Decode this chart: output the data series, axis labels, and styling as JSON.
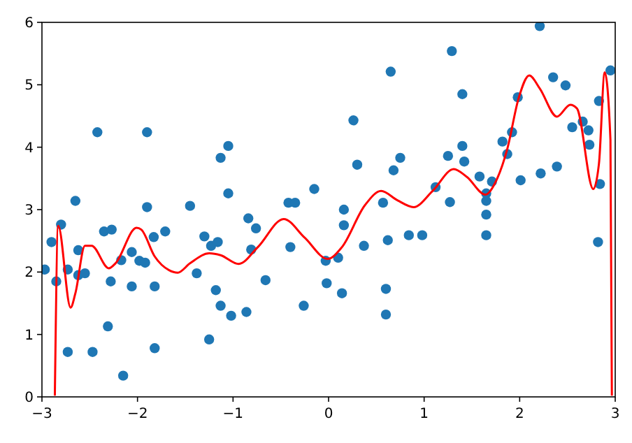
{
  "chart_data": {
    "type": "scatter",
    "xlim": [
      -3,
      3
    ],
    "ylim": [
      0,
      6
    ],
    "xticks": [
      {
        "value": -3,
        "label": "−3"
      },
      {
        "value": -2,
        "label": "−2"
      },
      {
        "value": -1,
        "label": "−1"
      },
      0,
      1,
      2,
      3
    ],
    "yticks": [
      0,
      1,
      2,
      3,
      4,
      5,
      6
    ],
    "series": [
      {
        "color": "#1f77b4",
        "marker": "circle",
        "x": [
          -2.97,
          -2.9,
          -2.85,
          -2.8,
          -2.73,
          -2.73,
          -2.65,
          -2.62,
          -2.62,
          -2.55,
          -2.47,
          -2.42,
          -2.35,
          -2.31,
          -2.27,
          -2.28,
          -2.17,
          -2.15,
          -2.06,
          -2.06,
          -1.98,
          -1.92,
          -1.9,
          -1.9,
          -1.83,
          -1.82,
          -1.82,
          -1.71,
          -1.45,
          -1.38,
          -1.3,
          -1.25,
          -1.23,
          -1.16,
          -1.18,
          -1.13,
          -1.13,
          -1.05,
          -1.05,
          -1.02,
          -0.84,
          -0.76,
          -0.81,
          -0.86,
          -0.66,
          -0.42,
          -0.35,
          -0.4,
          -0.26,
          -0.15,
          -0.03,
          -0.02,
          0.1,
          0.14,
          0.16,
          0.16,
          0.26,
          0.3,
          0.37,
          0.6,
          0.6,
          0.57,
          0.62,
          0.68,
          0.75,
          0.65,
          0.84,
          0.98,
          1.12,
          1.25,
          1.27,
          1.29,
          1.4,
          1.4,
          1.42,
          1.58,
          1.65,
          1.65,
          1.65,
          1.65,
          1.71,
          1.82,
          1.87,
          1.92,
          1.98,
          2.01,
          2.21,
          2.22,
          2.35,
          2.39,
          2.48,
          2.55,
          2.66,
          2.72,
          2.73,
          2.83,
          2.84,
          2.82,
          2.95
        ],
        "values": [
          2.04,
          2.48,
          1.85,
          2.76,
          2.04,
          0.72,
          3.14,
          2.35,
          1.95,
          1.98,
          0.72,
          4.24,
          2.65,
          1.13,
          2.68,
          1.85,
          2.19,
          0.34,
          2.32,
          1.77,
          2.18,
          2.15,
          4.24,
          3.04,
          2.56,
          1.77,
          0.78,
          2.65,
          3.06,
          1.98,
          2.57,
          0.92,
          2.42,
          2.48,
          1.71,
          3.83,
          1.46,
          4.02,
          3.26,
          1.3,
          2.86,
          2.7,
          2.36,
          1.36,
          1.87,
          3.11,
          3.11,
          2.4,
          1.46,
          3.33,
          2.18,
          1.82,
          2.23,
          1.66,
          3.0,
          2.75,
          4.43,
          3.72,
          2.42,
          1.73,
          1.32,
          3.11,
          2.51,
          3.63,
          3.83,
          5.21,
          2.59,
          2.59,
          3.36,
          3.86,
          3.12,
          5.54,
          4.85,
          4.02,
          3.77,
          3.53,
          3.26,
          3.14,
          2.92,
          2.59,
          3.45,
          4.09,
          3.89,
          4.24,
          4.8,
          3.47,
          5.94,
          3.58,
          5.12,
          3.69,
          4.99,
          4.32,
          4.41,
          4.27,
          4.04,
          4.74,
          3.41,
          2.48,
          5.23
        ]
      },
      {
        "type": "line",
        "color": "#ff0000",
        "line_style": "solid",
        "x": [
          -2.865,
          -2.83,
          -2.7,
          -2.65,
          -2.55,
          -2.48,
          -2.3,
          -2.23,
          -2.01,
          -1.96,
          -1.82,
          -1.67,
          -1.58,
          -1.45,
          -1.25,
          -1.13,
          -0.94,
          -0.74,
          -0.47,
          -0.25,
          -0.01,
          0.14,
          0.38,
          0.55,
          0.72,
          0.89,
          1.09,
          1.31,
          1.45,
          1.64,
          1.75,
          1.87,
          1.99,
          2.1,
          2.21,
          2.39,
          2.53,
          2.6,
          2.77,
          2.83,
          2.89,
          2.95,
          2.965
        ],
        "values": [
          0.02,
          2.74,
          1.43,
          1.66,
          2.42,
          2.42,
          2.06,
          2.14,
          2.71,
          2.68,
          2.25,
          2.03,
          1.99,
          2.14,
          2.3,
          2.27,
          2.13,
          2.4,
          2.85,
          2.55,
          2.21,
          2.4,
          3.07,
          3.3,
          3.15,
          3.04,
          3.3,
          3.65,
          3.52,
          3.24,
          3.45,
          3.97,
          4.79,
          5.15,
          4.94,
          4.49,
          4.68,
          4.62,
          3.33,
          3.74,
          5.2,
          4.12,
          0.02
        ]
      }
    ]
  }
}
